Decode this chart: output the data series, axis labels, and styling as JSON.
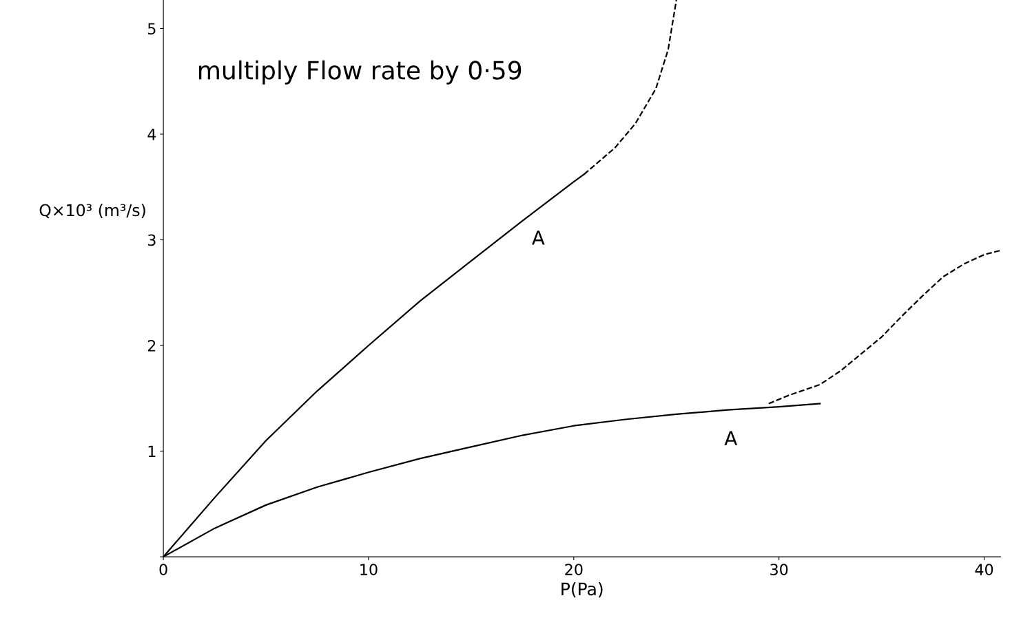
{
  "chart_data": {
    "type": "line",
    "xlabel": "P(Pa)",
    "ylabel": "Q×10³ (m³/s)",
    "xlim": [
      0,
      40.8
    ],
    "ylim": [
      0,
      5.27
    ],
    "xticks": [
      0,
      10,
      20,
      30,
      40
    ],
    "yticks": [
      {
        "value": 0,
        "label": null
      },
      1,
      2,
      3,
      4,
      5
    ],
    "grid": false,
    "marker": "none",
    "series": [
      {
        "color": "#000000",
        "line_style": "solid",
        "x": [
          0,
          2.5,
          5,
          7.5,
          10,
          12.5,
          15,
          17.5,
          20,
          20.5
        ],
        "values": [
          0,
          0.56,
          1.1,
          1.57,
          2.0,
          2.42,
          2.8,
          3.18,
          3.55,
          3.62
        ]
      },
      {
        "color": "#000000",
        "line_style": "dashed",
        "x": [
          20.5,
          22,
          23,
          24,
          24.6,
          25
        ],
        "values": [
          3.62,
          3.87,
          4.1,
          4.43,
          4.8,
          5.27
        ]
      },
      {
        "color": "#000000",
        "line_style": "solid",
        "x": [
          0,
          2.5,
          5,
          7.5,
          10,
          12.5,
          15,
          17.5,
          20,
          22.5,
          25,
          27.5,
          30,
          32
        ],
        "values": [
          0,
          0.27,
          0.49,
          0.66,
          0.8,
          0.93,
          1.04,
          1.15,
          1.24,
          1.3,
          1.35,
          1.39,
          1.42,
          1.45
        ]
      },
      {
        "color": "#000000",
        "line_style": "dashed",
        "x": [
          29.5,
          30.5,
          32,
          33,
          34,
          35,
          36,
          37,
          38,
          39,
          40,
          40.8
        ],
        "values": [
          1.45,
          1.53,
          1.63,
          1.76,
          1.92,
          2.08,
          2.28,
          2.47,
          2.65,
          2.77,
          2.86,
          2.9
        ]
      }
    ],
    "annotations": [
      "multiply Flow rate by 0·59",
      "A",
      "A"
    ]
  }
}
